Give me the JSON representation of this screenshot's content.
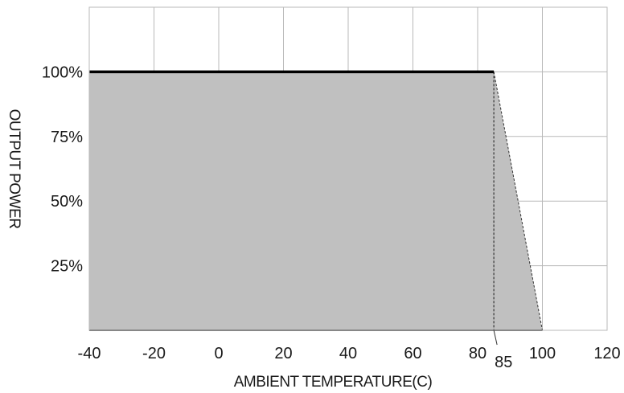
{
  "chart_data": {
    "type": "area",
    "x": [
      -40,
      85,
      100
    ],
    "y": [
      100,
      100,
      0
    ],
    "xlabel": "AMBIENT TEMPERATURE(C)",
    "ylabel": "OUTPUT POWER",
    "xlim": [
      -40,
      120
    ],
    "ylim": [
      0,
      125
    ],
    "x_ticks": [
      "-40",
      "-20",
      "0",
      "20",
      "40",
      "60",
      "80",
      "100",
      "120"
    ],
    "y_ticks": [
      "25%",
      "50%",
      "75%",
      "100%"
    ],
    "annotations": [
      {
        "text": "85",
        "x": 85
      }
    ],
    "grid": true,
    "colors": {
      "fill": "#c0c0c0",
      "line": "#000000",
      "grid": "#b9b9b9"
    }
  }
}
